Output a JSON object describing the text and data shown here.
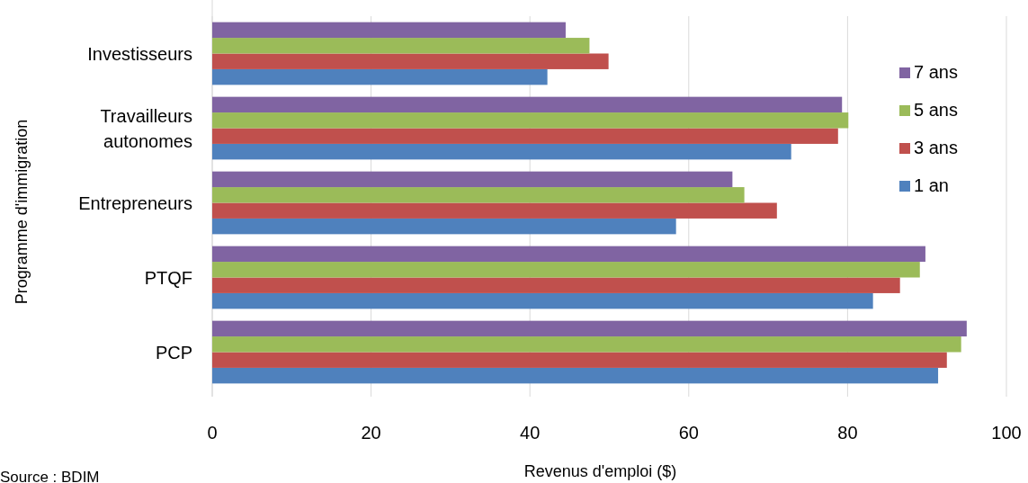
{
  "chart_data": {
    "type": "bar",
    "orientation": "horizontal",
    "xlabel": "Revenus d'emploi ($)",
    "ylabel": "Programme d'immigration",
    "categories": [
      "Investisseurs",
      "Travailleurs autonomes",
      "Entrepreneurs",
      "PTQF",
      "PCP"
    ],
    "series": [
      {
        "name": "1 an",
        "color": "#4f81bd",
        "values": [
          42.2,
          72.9,
          58.4,
          83.2,
          91.4
        ]
      },
      {
        "name": "3 ans",
        "color": "#c0504d",
        "values": [
          49.9,
          78.8,
          71.1,
          86.6,
          92.5
        ]
      },
      {
        "name": "5 ans",
        "color": "#9bbb59",
        "values": [
          47.5,
          80.1,
          67.0,
          89.1,
          94.3
        ]
      },
      {
        "name": "7 ans",
        "color": "#8064a2",
        "values": [
          44.5,
          79.3,
          65.5,
          89.8,
          95.0
        ]
      }
    ],
    "xlim": [
      0,
      100
    ],
    "xticks": [
      0,
      20,
      40,
      60,
      80,
      100
    ],
    "grid": "x",
    "legend": "right",
    "annotations": [
      "Source : BDIM"
    ]
  }
}
